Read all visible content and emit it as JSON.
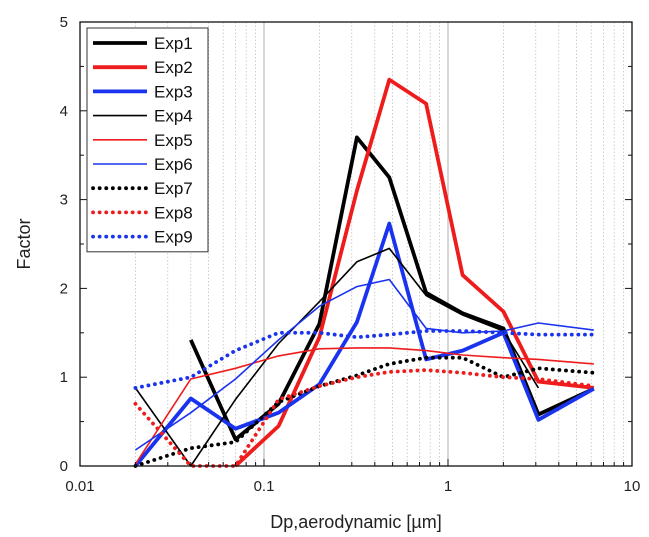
{
  "chart_data": {
    "type": "line",
    "xlabel": "Dp,aerodynamic [µm]",
    "ylabel": "Factor",
    "xscale": "log",
    "xlim": [
      0.01,
      10
    ],
    "ylim": [
      0,
      5
    ],
    "x_ticks": [
      "0.01",
      "0.1",
      "1",
      "10"
    ],
    "y_ticks": [
      "0",
      "1",
      "2",
      "3",
      "4",
      "5"
    ],
    "grid": "vertical minor log gridlines (dotted)",
    "legend_position": "top-left",
    "series": [
      {
        "name": "Exp1",
        "color": "#000000",
        "width": "thick",
        "dash": "solid",
        "x": [
          0.04,
          0.07,
          0.12,
          0.2,
          0.32,
          0.48,
          0.76,
          1.2,
          2.0,
          3.1,
          6.2
        ],
        "y": [
          1.42,
          0.3,
          0.7,
          1.6,
          3.7,
          3.25,
          1.95,
          1.72,
          1.55,
          0.58,
          0.87
        ]
      },
      {
        "name": "Exp2",
        "color": "#ee1c1c",
        "width": "thick",
        "dash": "solid",
        "x": [
          0.07,
          0.12,
          0.2,
          0.32,
          0.48,
          0.76,
          1.2,
          2.0,
          3.1,
          6.2
        ],
        "y": [
          0.0,
          0.45,
          1.45,
          3.1,
          4.35,
          4.08,
          2.15,
          1.74,
          0.95,
          0.88
        ]
      },
      {
        "name": "Exp3",
        "color": "#1a33ee",
        "width": "thick",
        "dash": "solid",
        "x": [
          0.02,
          0.04,
          0.07,
          0.12,
          0.2,
          0.32,
          0.48,
          0.76,
          1.2,
          2.0,
          3.1,
          6.2
        ],
        "y": [
          0.0,
          0.76,
          0.42,
          0.6,
          0.92,
          1.62,
          2.73,
          1.2,
          1.3,
          1.5,
          0.52,
          0.87
        ]
      },
      {
        "name": "Exp4",
        "color": "#000000",
        "width": "thin",
        "dash": "solid",
        "x": [
          0.02,
          0.04,
          0.07,
          0.12,
          0.2,
          0.32,
          0.48,
          0.76,
          1.2,
          2.0,
          3.1
        ],
        "y": [
          0.88,
          0.0,
          0.75,
          1.38,
          1.85,
          2.3,
          2.45,
          1.92,
          1.7,
          1.52,
          0.88
        ]
      },
      {
        "name": "Exp5",
        "color": "#ee1c1c",
        "width": "thin",
        "dash": "solid",
        "x": [
          0.02,
          0.04,
          0.07,
          0.12,
          0.2,
          0.32,
          0.48,
          0.76,
          1.2,
          2.0,
          3.1,
          6.2
        ],
        "y": [
          0.02,
          0.98,
          1.1,
          1.24,
          1.32,
          1.33,
          1.33,
          1.3,
          1.25,
          1.22,
          1.2,
          1.15
        ]
      },
      {
        "name": "Exp6",
        "color": "#1a33ee",
        "width": "thin",
        "dash": "solid",
        "x": [
          0.02,
          0.04,
          0.07,
          0.12,
          0.2,
          0.32,
          0.48,
          0.76,
          1.2,
          2.0,
          3.1,
          6.2
        ],
        "y": [
          0.18,
          0.6,
          0.98,
          1.42,
          1.8,
          2.02,
          2.1,
          1.55,
          1.5,
          1.52,
          1.61,
          1.53
        ]
      },
      {
        "name": "Exp7",
        "color": "#000000",
        "width": "thick",
        "dash": "dotted",
        "x": [
          0.02,
          0.04,
          0.07,
          0.12,
          0.2,
          0.32,
          0.48,
          0.76,
          1.2,
          2.0,
          3.1,
          6.2
        ],
        "y": [
          0.0,
          0.2,
          0.27,
          0.72,
          0.9,
          1.02,
          1.15,
          1.22,
          1.22,
          1.0,
          1.1,
          1.05
        ]
      },
      {
        "name": "Exp8",
        "color": "#ee1c1c",
        "width": "thick",
        "dash": "dotted",
        "x": [
          0.02,
          0.04,
          0.07,
          0.12,
          0.2,
          0.32,
          0.48,
          0.76,
          1.2,
          2.0,
          3.1,
          6.2
        ],
        "y": [
          0.7,
          0.0,
          0.0,
          0.75,
          0.9,
          1.0,
          1.06,
          1.08,
          1.05,
          1.0,
          0.98,
          0.9
        ]
      },
      {
        "name": "Exp9",
        "color": "#1a33ee",
        "width": "thick",
        "dash": "dotted",
        "x": [
          0.02,
          0.04,
          0.07,
          0.12,
          0.2,
          0.32,
          0.48,
          0.76,
          1.2,
          2.0,
          3.1,
          6.2
        ],
        "y": [
          0.88,
          1.0,
          1.3,
          1.5,
          1.5,
          1.45,
          1.48,
          1.52,
          1.52,
          1.5,
          1.48,
          1.48
        ]
      }
    ]
  }
}
